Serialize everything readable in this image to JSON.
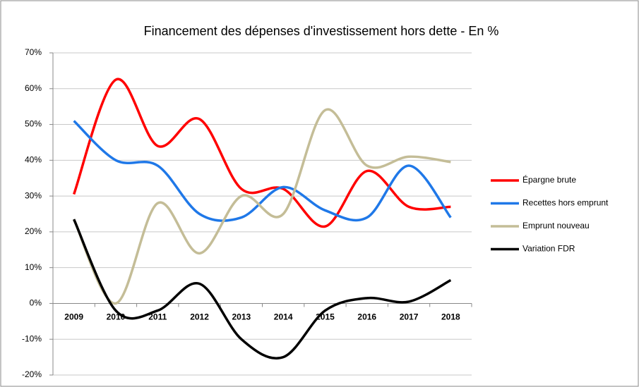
{
  "chart_data": {
    "type": "line",
    "title": "Financement des dépenses d'investissement hors dette - En %",
    "categories": [
      "2009",
      "2010",
      "2011",
      "2012",
      "2013",
      "2014",
      "2015",
      "2016",
      "2017",
      "2018"
    ],
    "series": [
      {
        "name": "Épargne brute",
        "color": "#ff0000",
        "values": [
          30.5,
          62.5,
          44,
          51.5,
          32,
          32,
          21.5,
          37,
          27,
          27
        ]
      },
      {
        "name": "Recettes hors emprunt",
        "color": "#1f78e8",
        "values": [
          51,
          40,
          38.5,
          25,
          24,
          32.5,
          26,
          24,
          38.5,
          24
        ]
      },
      {
        "name": "Emprunt nouveau",
        "color": "#c4bd97",
        "values": [
          23.5,
          0,
          28,
          14,
          30,
          25,
          54,
          38.5,
          41,
          39.5
        ]
      },
      {
        "name": "Variation FDR",
        "color": "#000000",
        "values": [
          23.5,
          -2,
          -2,
          5.5,
          -10,
          -15,
          -2,
          1.5,
          0.5,
          6.5
        ]
      }
    ],
    "ylim": [
      -20,
      70
    ],
    "yticks": [
      {
        "value": -20,
        "label": "-20%"
      },
      {
        "value": -10,
        "label": "-10%"
      },
      {
        "value": 0,
        "label": "0%"
      },
      {
        "value": 10,
        "label": "10%"
      },
      {
        "value": 20,
        "label": "20%"
      },
      {
        "value": 30,
        "label": "30%"
      },
      {
        "value": 40,
        "label": "40%"
      },
      {
        "value": 50,
        "label": "50%"
      },
      {
        "value": 60,
        "label": "60%"
      },
      {
        "value": 70,
        "label": "70%"
      }
    ],
    "grid": true,
    "legend": "right"
  }
}
